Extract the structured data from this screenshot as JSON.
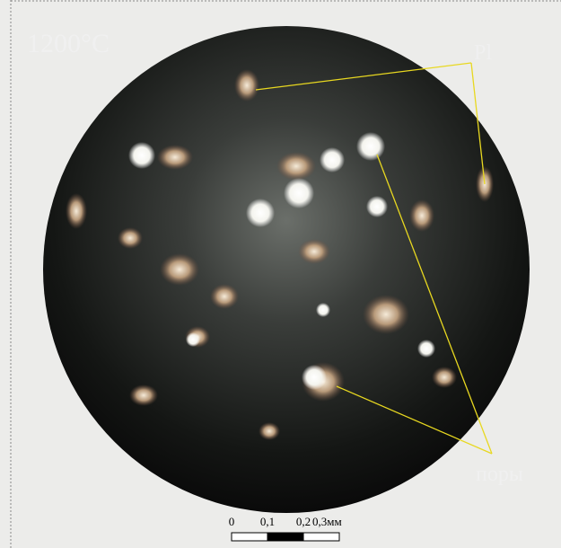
{
  "image": {
    "temperature_label": "1200°C",
    "labels": {
      "plagioclase": "Pl",
      "pores": "поры"
    },
    "scale_bar": {
      "ticks": [
        "0",
        "0,1",
        "0,2",
        "0,3мм"
      ]
    }
  }
}
